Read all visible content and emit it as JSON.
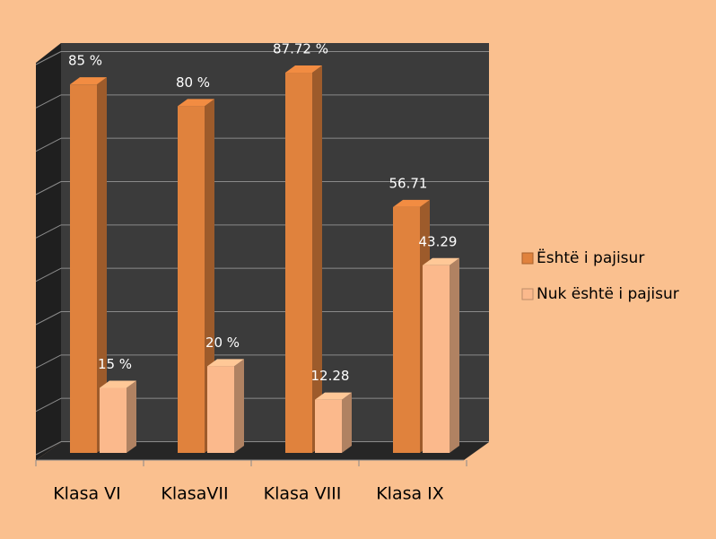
{
  "chart_data": {
    "type": "bar3d",
    "categories": [
      "Klasa VI",
      "KlasaVII",
      "Klasa VIII",
      "Klasa IX"
    ],
    "series": [
      {
        "name": "Është i pajisur",
        "color": "#e0823d",
        "values": [
          85,
          80,
          87.72,
          56.71
        ],
        "value_labels": [
          "85 %",
          "80 %",
          "87.72 %",
          "56.71"
        ]
      },
      {
        "name": "Nuk është i pajisur",
        "color": "#fbb98c",
        "values": [
          15,
          20,
          12.28,
          43.29
        ],
        "value_labels": [
          "15 %",
          "20 %",
          "12.28",
          "43.29"
        ]
      }
    ],
    "ylim": [
      0,
      90
    ],
    "yticks": [
      0,
      10,
      20,
      30,
      40,
      50,
      60,
      70,
      80,
      90
    ],
    "grid": true,
    "legend": "right"
  }
}
